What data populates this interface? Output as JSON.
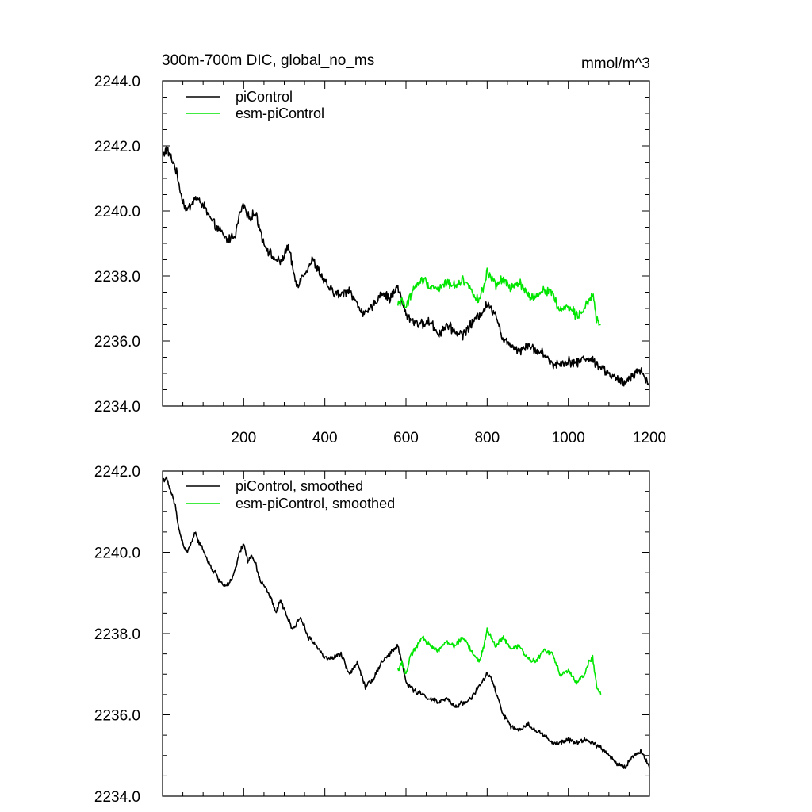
{
  "colors": {
    "picontrol": "#000000",
    "esm_picontrol": "#00e600",
    "axis": "#000000",
    "background": "#ffffff"
  },
  "chart_data": [
    {
      "type": "line",
      "title": "300m-700m DIC, global_no_ms",
      "units": "mmol/m^3",
      "xlabel": "",
      "ylabel": "",
      "xlim": [
        0,
        1200
      ],
      "ylim": [
        2234.0,
        2244.0
      ],
      "xticks": [
        200,
        400,
        600,
        800,
        1000,
        1200
      ],
      "xtick_labels": [
        "200",
        "400",
        "600",
        "800",
        "1000",
        "1200"
      ],
      "yticks": [
        2234.0,
        2236.0,
        2238.0,
        2240.0,
        2242.0,
        2244.0
      ],
      "ytick_labels": [
        "2234.0",
        "2236.0",
        "2238.0",
        "2240.0",
        "2242.0",
        "2244.0"
      ],
      "legend": "top-left",
      "grid": false,
      "series": [
        {
          "name": "piControl",
          "color": "#000000",
          "x": [
            0,
            10,
            30,
            50,
            60,
            80,
            100,
            120,
            140,
            160,
            180,
            190,
            200,
            210,
            230,
            250,
            270,
            290,
            310,
            330,
            350,
            370,
            400,
            420,
            440,
            460,
            480,
            500,
            520,
            540,
            560,
            580,
            590,
            600,
            620,
            640,
            660,
            680,
            700,
            720,
            740,
            760,
            780,
            800,
            820,
            840,
            860,
            880,
            900,
            920,
            940,
            960,
            980,
            1000,
            1020,
            1040,
            1060,
            1080,
            1100,
            1120,
            1140,
            1160,
            1180,
            1200
          ],
          "values": [
            2241.7,
            2241.9,
            2241.4,
            2240.3,
            2240.0,
            2240.4,
            2240.2,
            2239.7,
            2239.4,
            2239.1,
            2239.3,
            2239.9,
            2240.2,
            2239.8,
            2239.9,
            2239.0,
            2238.6,
            2238.4,
            2238.9,
            2237.7,
            2238.1,
            2238.5,
            2237.8,
            2237.5,
            2237.4,
            2237.6,
            2237.1,
            2236.8,
            2237.1,
            2237.5,
            2237.3,
            2237.7,
            2237.2,
            2236.8,
            2236.6,
            2236.5,
            2236.6,
            2236.2,
            2236.5,
            2236.3,
            2236.2,
            2236.5,
            2236.8,
            2237.1,
            2236.9,
            2236.0,
            2235.9,
            2235.7,
            2235.9,
            2235.7,
            2235.6,
            2235.3,
            2235.3,
            2235.4,
            2235.3,
            2235.5,
            2235.4,
            2235.2,
            2235.0,
            2234.8,
            2234.7,
            2235.0,
            2235.1,
            2234.6
          ]
        },
        {
          "name": "esm-piControl",
          "color": "#00e600",
          "x": [
            580,
            590,
            600,
            610,
            620,
            640,
            660,
            680,
            700,
            720,
            740,
            760,
            780,
            790,
            800,
            820,
            840,
            860,
            880,
            900,
            920,
            940,
            960,
            980,
            1000,
            1020,
            1040,
            1050,
            1060,
            1070,
            1080
          ],
          "values": [
            2237.1,
            2237.3,
            2237.0,
            2237.4,
            2237.6,
            2237.9,
            2237.7,
            2237.6,
            2237.8,
            2237.7,
            2237.9,
            2237.6,
            2237.2,
            2237.6,
            2238.1,
            2237.7,
            2237.9,
            2237.6,
            2237.8,
            2237.4,
            2237.3,
            2237.6,
            2237.5,
            2236.9,
            2237.1,
            2236.8,
            2237.0,
            2237.3,
            2237.4,
            2236.6,
            2236.5
          ]
        }
      ]
    },
    {
      "type": "line",
      "title": "",
      "xlabel": "",
      "ylabel": "",
      "xlim": [
        0,
        1200
      ],
      "ylim": [
        2234.0,
        2242.0
      ],
      "xticks": [
        200,
        400,
        600,
        800,
        1000,
        1200
      ],
      "xtick_labels": [],
      "yticks": [
        2234.0,
        2236.0,
        2238.0,
        2240.0,
        2242.0
      ],
      "ytick_labels": [
        "2234.0",
        "2236.0",
        "2238.0",
        "2240.0",
        "2242.0"
      ],
      "legend": "top-left",
      "grid": false,
      "series": [
        {
          "name": "piControl, smoothed",
          "color": "#000000",
          "x": [
            0,
            10,
            20,
            30,
            40,
            50,
            60,
            70,
            80,
            90,
            100,
            110,
            120,
            130,
            140,
            150,
            160,
            170,
            180,
            190,
            200,
            210,
            220,
            230,
            240,
            250,
            260,
            270,
            280,
            290,
            300,
            320,
            340,
            360,
            380,
            400,
            420,
            440,
            460,
            480,
            500,
            520,
            540,
            560,
            580,
            590,
            600,
            620,
            640,
            660,
            680,
            700,
            720,
            740,
            760,
            780,
            800,
            810,
            820,
            840,
            860,
            880,
            900,
            920,
            940,
            960,
            980,
            1000,
            1020,
            1040,
            1060,
            1080,
            1100,
            1120,
            1140,
            1160,
            1180,
            1200
          ],
          "values": [
            2241.8,
            2241.8,
            2241.5,
            2241.2,
            2240.6,
            2240.2,
            2240.0,
            2240.2,
            2240.5,
            2240.2,
            2240.1,
            2239.8,
            2239.6,
            2239.5,
            2239.3,
            2239.2,
            2239.2,
            2239.3,
            2239.6,
            2240.0,
            2240.2,
            2239.8,
            2239.9,
            2239.7,
            2239.3,
            2239.2,
            2239.0,
            2238.8,
            2238.5,
            2238.8,
            2238.6,
            2238.1,
            2238.4,
            2237.9,
            2237.7,
            2237.4,
            2237.4,
            2237.5,
            2237.0,
            2237.3,
            2236.7,
            2236.9,
            2237.3,
            2237.5,
            2237.7,
            2237.3,
            2236.8,
            2236.6,
            2236.5,
            2236.4,
            2236.3,
            2236.4,
            2236.2,
            2236.3,
            2236.4,
            2236.7,
            2237.0,
            2236.9,
            2236.6,
            2236.0,
            2235.7,
            2235.6,
            2235.8,
            2235.6,
            2235.5,
            2235.3,
            2235.3,
            2235.4,
            2235.3,
            2235.4,
            2235.3,
            2235.2,
            2235.0,
            2234.8,
            2234.7,
            2235.0,
            2235.1,
            2234.7
          ]
        },
        {
          "name": "esm-piControl, smoothed",
          "color": "#00e600",
          "x": [
            580,
            590,
            600,
            610,
            620,
            640,
            660,
            680,
            700,
            720,
            740,
            760,
            780,
            790,
            800,
            820,
            840,
            860,
            880,
            900,
            920,
            940,
            960,
            980,
            1000,
            1020,
            1040,
            1050,
            1060,
            1070,
            1080
          ],
          "values": [
            2237.1,
            2237.3,
            2237.0,
            2237.4,
            2237.6,
            2237.9,
            2237.7,
            2237.6,
            2237.8,
            2237.7,
            2237.9,
            2237.6,
            2237.3,
            2237.6,
            2238.1,
            2237.7,
            2237.9,
            2237.6,
            2237.7,
            2237.4,
            2237.3,
            2237.6,
            2237.5,
            2237.0,
            2237.1,
            2236.8,
            2237.0,
            2237.3,
            2237.4,
            2236.7,
            2236.5
          ]
        }
      ]
    }
  ]
}
